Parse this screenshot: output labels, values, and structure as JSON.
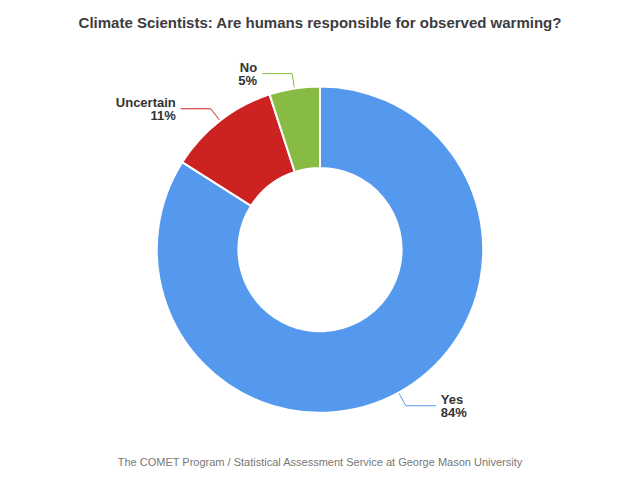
{
  "chart_data": {
    "type": "pie",
    "title": "Climate Scientists: Are humans responsible for observed warming?",
    "categories": [
      "Yes",
      "Uncertain",
      "No"
    ],
    "values": [
      84,
      11,
      5
    ],
    "value_labels": [
      "84%",
      "11%",
      "5%"
    ],
    "colors": [
      "#5599ee",
      "#cc2222",
      "#88bb44"
    ],
    "data_labels": true,
    "annotations": [
      "The COMET Program / Statistical Assessment Service at George Mason University"
    ]
  }
}
